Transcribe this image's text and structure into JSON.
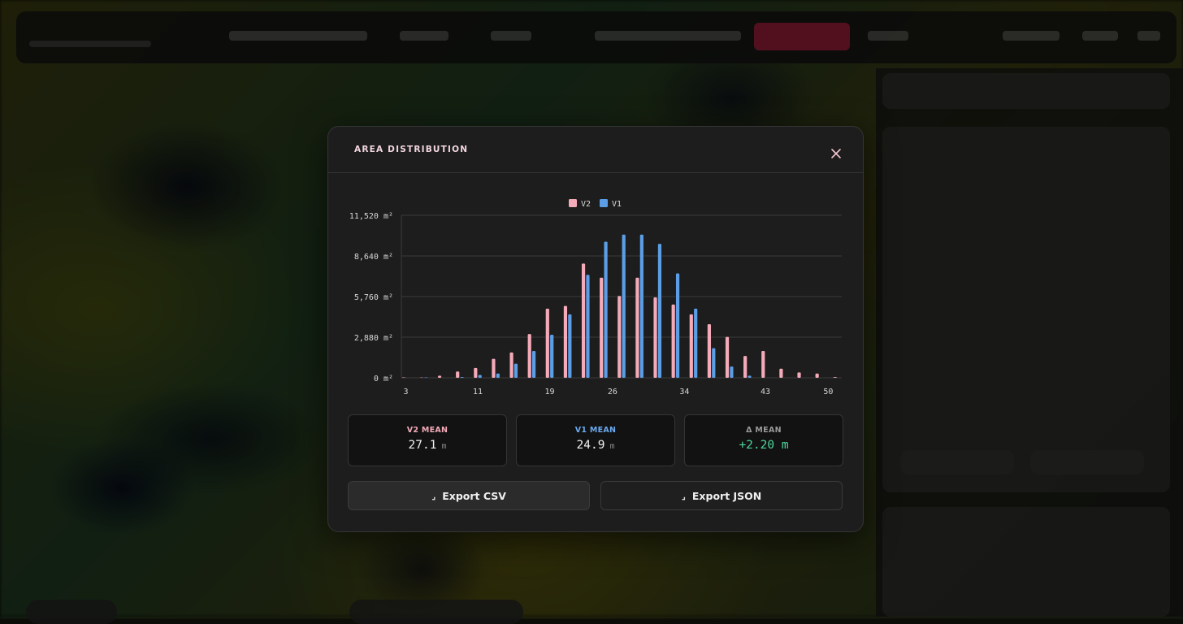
{
  "modal": {
    "title": "AREA DISTRIBUTION",
    "close_icon": "close-icon"
  },
  "chart_data": {
    "type": "bar",
    "title": "",
    "xlabel": "",
    "ylabel": "",
    "y_unit": "m²",
    "ylim": [
      0,
      11520
    ],
    "y_ticks": [
      "0 m²",
      "2,880 m²",
      "5,760 m²",
      "8,640 m²",
      "11,520 m²"
    ],
    "y_tick_values": [
      0,
      2880,
      5760,
      8640,
      11520
    ],
    "x_ticks": [
      "3",
      "11",
      "19",
      "26",
      "34",
      "43",
      "50"
    ],
    "x_tick_categories": [
      3,
      11,
      19,
      26,
      34,
      43,
      50
    ],
    "categories": [
      3,
      4,
      5,
      6,
      7,
      8,
      9,
      10,
      11,
      12,
      13,
      14,
      15,
      16,
      17,
      18,
      19,
      20,
      21,
      22,
      23,
      24,
      25,
      26,
      27,
      28,
      29,
      30,
      31,
      32,
      33,
      34,
      35,
      36,
      37,
      38,
      39,
      40,
      41,
      42,
      43,
      44,
      45,
      46,
      47,
      48,
      49,
      50,
      51
    ],
    "legend_position": "top-center",
    "grid": true,
    "series": [
      {
        "name": "V2",
        "color": "#f4aab8",
        "values": [
          30,
          0,
          20,
          0,
          150,
          0,
          450,
          0,
          700,
          0,
          1350,
          0,
          1800,
          0,
          3100,
          0,
          4900,
          0,
          5100,
          0,
          8100,
          0,
          7100,
          0,
          5800,
          0,
          7100,
          0,
          5700,
          0,
          5200,
          0,
          4500,
          0,
          3800,
          0,
          2900,
          0,
          1550,
          0,
          1900,
          0,
          650,
          0,
          380,
          0,
          300,
          0,
          50
        ]
      },
      {
        "name": "V1",
        "color": "#5b9ee6",
        "values": [
          0,
          0,
          30,
          0,
          0,
          0,
          50,
          0,
          200,
          0,
          300,
          0,
          1000,
          0,
          1900,
          0,
          3050,
          0,
          4500,
          0,
          7300,
          0,
          9650,
          0,
          10150,
          0,
          10150,
          0,
          9500,
          0,
          7400,
          0,
          4900,
          0,
          2100,
          0,
          800,
          0,
          150,
          0,
          0,
          0,
          0,
          0,
          0,
          0,
          0,
          0,
          0
        ]
      }
    ]
  },
  "stats": [
    {
      "label": "V2 MEAN",
      "value": "27.1",
      "unit": "m",
      "label_color": "#f4aab8",
      "value_color": "#f0f0f0"
    },
    {
      "label": "V1 MEAN",
      "value": "24.9",
      "unit": "m",
      "label_color": "#6aaaf0",
      "value_color": "#f0f0f0"
    },
    {
      "label": "Δ MEAN",
      "value": "+2.20 m",
      "unit": "",
      "label_color": "#9a9a9a",
      "value_color": "#4fd69a"
    }
  ],
  "actions": {
    "export_csv": "Export CSV",
    "export_json": "Export JSON",
    "download_icon": "download-icon"
  }
}
